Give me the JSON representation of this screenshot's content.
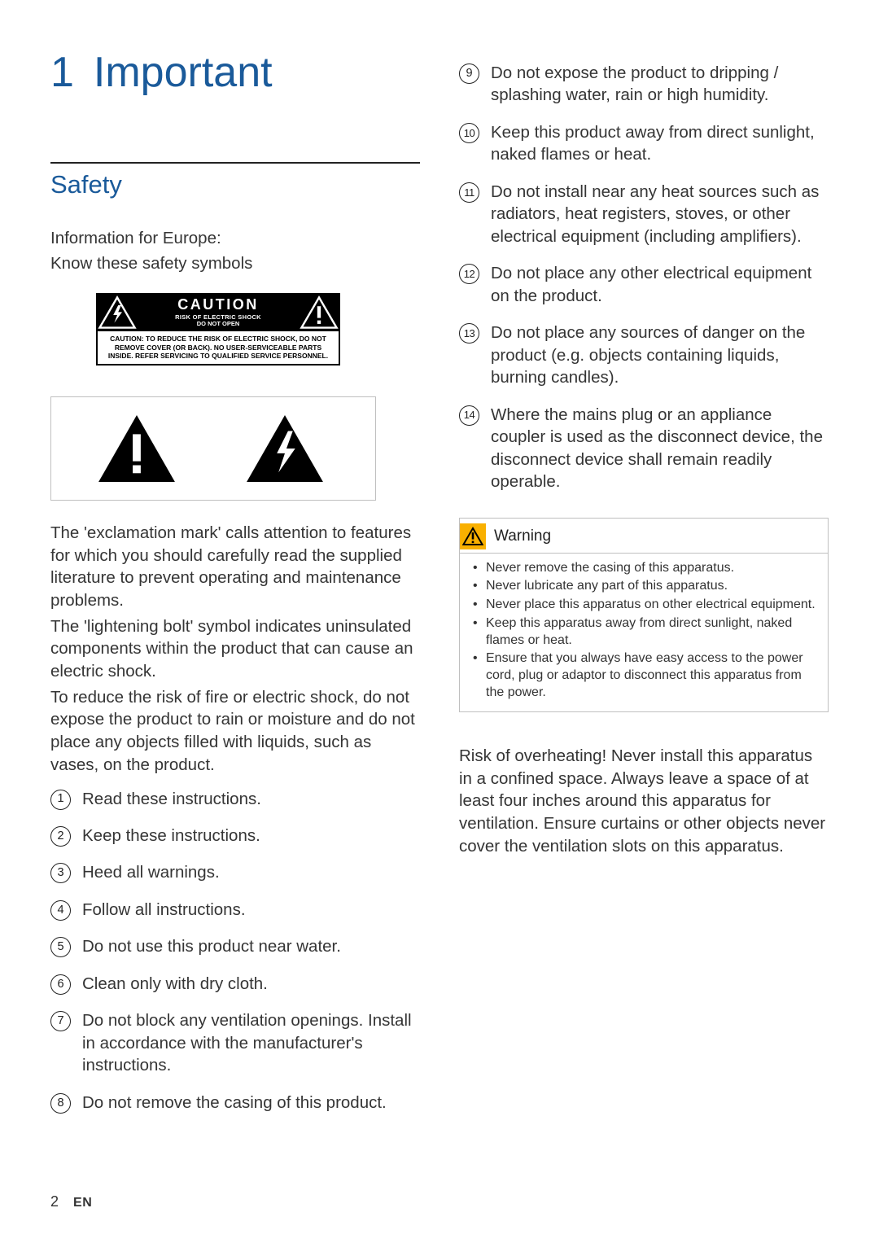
{
  "chapter": {
    "number": "1",
    "title": "Important"
  },
  "section": {
    "title": "Safety"
  },
  "intro": {
    "line1": "Information for Europe:",
    "line2": "Know these safety symbols"
  },
  "caution_label": {
    "main": "CAUTION",
    "sub1": "RISK OF ELECTRIC SHOCK",
    "sub2": "DO NOT OPEN",
    "footer": "CAUTION: TO REDUCE THE RISK OF ELECTRIC SHOCK, DO NOT REMOVE COVER (OR BACK). NO USER-SERVICEABLE PARTS INSIDE. REFER SERVICING TO QUALIFIED SERVICE PERSONNEL."
  },
  "explain": {
    "p1": "The 'exclamation mark' calls attention to features for which you should carefully read the supplied literature to prevent operating and maintenance problems.",
    "p2": "The 'lightening bolt' symbol indicates uninsulated components within the product that can cause an electric shock.",
    "p3": "To reduce the risk of fire or electric shock, do not expose the product to rain or moisture and do not place any objects filled with liquids, such as vases, on the product."
  },
  "instructions": [
    "Read these instructions.",
    "Keep these instructions.",
    "Heed all warnings.",
    "Follow all instructions.",
    "Do not use this product near water.",
    "Clean only with dry cloth.",
    "Do not block any ventilation openings. Install in accordance with the manufacturer's instructions.",
    "Do not remove the casing of this product.",
    "Do not expose the product to dripping / splashing water, rain or high humidity.",
    "Keep this product away from direct sunlight, naked flames or heat.",
    "Do not install near any heat sources such as radiators, heat registers, stoves, or other electrical equipment (including amplifiers).",
    "Do not place any other electrical equipment on the product.",
    "Do not place any sources of danger on the product (e.g. objects containing liquids, burning candles).",
    "Where the mains plug or an appliance coupler is used as the disconnect device, the disconnect device shall remain readily operable."
  ],
  "warning": {
    "label": "Warning",
    "bullets": [
      "Never remove the casing of this apparatus.",
      "Never lubricate any part of this apparatus.",
      "Never place this apparatus on other electrical equipment.",
      "Keep this apparatus away from direct sunlight, naked flames or heat.",
      "Ensure that you always have easy access to the power cord, plug or adaptor to disconnect this apparatus from the power."
    ]
  },
  "risk_para": "Risk of overheating! Never install this apparatus in a confined space. Always leave a space of at least four inches around this apparatus for ventilation. Ensure curtains or other objects never cover the ventilation slots on this apparatus.",
  "footer": {
    "page": "2",
    "lang": "EN"
  },
  "colors": {
    "heading": "#1a5a9a",
    "text": "#353535",
    "border_light": "#bfbfbf",
    "warn_icon_bg": "#f9b000"
  },
  "typography": {
    "chapter_fontsize": 52,
    "section_fontsize": 31,
    "body_fontsize": 20.5,
    "warning_body_fontsize": 16
  },
  "left_list_count": 8
}
